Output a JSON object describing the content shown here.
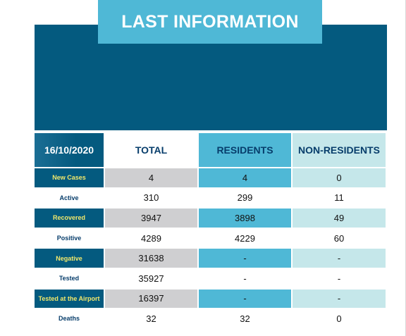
{
  "title": "LAST INFORMATION",
  "colors": {
    "dark_navy": "#045a7f",
    "accent_cyan": "#4fb8d6",
    "light_teal": "#c5e7ea",
    "gray": "#cfcfd1",
    "label_yellow": "#f2e86b"
  },
  "table": {
    "date": "16/10/2020",
    "headers": {
      "total": "TOTAL",
      "residents": "RESIDENTS",
      "non_residents": "NON-RESIDENTS"
    },
    "rows": [
      {
        "label": "New Cases",
        "total": "4",
        "residents": "4",
        "non_residents": "0"
      },
      {
        "label": "Active",
        "total": "310",
        "residents": "299",
        "non_residents": "11"
      },
      {
        "label": "Recovered",
        "total": "3947",
        "residents": "3898",
        "non_residents": "49"
      },
      {
        "label": "Positive",
        "total": "4289",
        "residents": "4229",
        "non_residents": "60"
      },
      {
        "label": "Negative",
        "total": "31638",
        "residents": "-",
        "non_residents": "-"
      },
      {
        "label": "Tested",
        "total": "35927",
        "residents": "-",
        "non_residents": "-"
      },
      {
        "label": "Tested at the Airport",
        "total": "16397",
        "residents": "-",
        "non_residents": "-"
      },
      {
        "label": "Deaths",
        "total": "32",
        "residents": "32",
        "non_residents": "0"
      }
    ]
  }
}
